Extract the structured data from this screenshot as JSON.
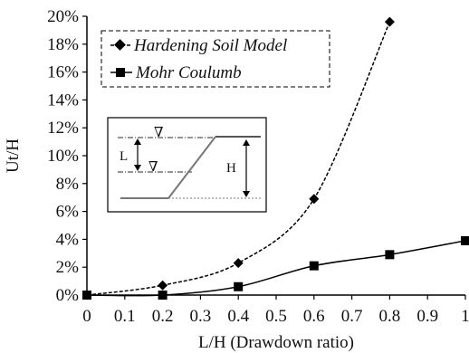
{
  "chart_data": {
    "type": "line",
    "xlabel": "L/H (Drawdown ratio)",
    "ylabel": "Ut/H",
    "xlim": [
      0,
      1
    ],
    "ylim": [
      0,
      20
    ],
    "x_ticks": [
      0,
      0.1,
      0.2,
      0.3,
      0.4,
      0.5,
      0.6,
      0.7,
      0.8,
      0.9,
      1
    ],
    "x_tick_labels": [
      "0",
      "0.1",
      "0.2",
      "0.3",
      "0.4",
      "0.5",
      "0.6",
      "0.7",
      "0.8",
      "0.9",
      "1"
    ],
    "y_ticks": [
      0,
      2,
      4,
      6,
      8,
      10,
      12,
      14,
      16,
      18,
      20
    ],
    "y_tick_labels": [
      "0%",
      "2%",
      "4%",
      "6%",
      "8%",
      "10%",
      "12%",
      "14%",
      "16%",
      "18%",
      "20%"
    ],
    "grid": false,
    "legend_position": "top-left",
    "series": [
      {
        "name": "Hardening Soil Model",
        "marker": "diamond",
        "line_style": "dashed",
        "color": "#000000",
        "x": [
          0,
          0.2,
          0.4,
          0.6,
          0.8
        ],
        "y": [
          0,
          0.7,
          2.3,
          6.9,
          19.6
        ]
      },
      {
        "name": "Mohr Coulumb",
        "marker": "square",
        "line_style": "solid",
        "color": "#000000",
        "x": [
          0,
          0.2,
          0.4,
          0.6,
          0.8,
          1.0
        ],
        "y": [
          0,
          0,
          0.6,
          2.1,
          2.9,
          3.9
        ]
      }
    ],
    "inset": {
      "label_L": "L",
      "label_H": "H",
      "water_symbol": "∇"
    }
  }
}
